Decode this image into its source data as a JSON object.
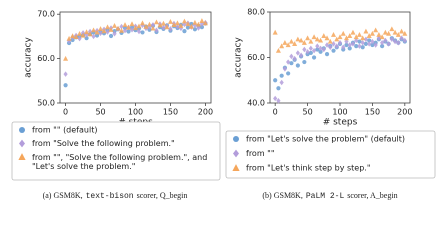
{
  "chart_data": [
    {
      "type": "scatter",
      "xlabel": "# steps",
      "ylabel": "accuracy",
      "xlim": [
        -8,
        208
      ],
      "ylim": [
        50,
        70.5
      ],
      "xticks": [
        0,
        50,
        100,
        150,
        200
      ],
      "yticks": [
        {
          "value": 50,
          "label": "50.0"
        },
        {
          "value": 60,
          "label": "60.0"
        },
        {
          "value": 70,
          "label": "70.0"
        }
      ],
      "x": [
        0,
        5,
        10,
        15,
        20,
        25,
        30,
        35,
        40,
        45,
        50,
        55,
        60,
        65,
        70,
        75,
        80,
        85,
        90,
        95,
        100,
        105,
        110,
        115,
        120,
        125,
        130,
        135,
        140,
        145,
        150,
        155,
        160,
        165,
        170,
        175,
        180,
        185,
        190,
        195,
        200
      ],
      "series": [
        {
          "name": "from \"\" (default)",
          "color": "#6a9fd4",
          "marker": "circle",
          "values": [
            54.0,
            63.5,
            64.2,
            64.8,
            65.0,
            65.3,
            64.6,
            65.5,
            65.9,
            65.2,
            66.0,
            65.7,
            66.4,
            65.1,
            66.2,
            66.6,
            65.8,
            66.9,
            66.1,
            67.0,
            66.4,
            66.8,
            65.9,
            67.2,
            66.5,
            67.4,
            66.0,
            67.1,
            66.7,
            67.5,
            66.3,
            67.3,
            66.9,
            67.6,
            66.2,
            67.0,
            67.8,
            66.6,
            67.4,
            67.1,
            67.9
          ]
        },
        {
          "name": "from \"Solve the following problem.\"",
          "color": "#b39ddb",
          "marker": "diamond",
          "values": [
            56.5,
            64.0,
            64.8,
            65.2,
            64.5,
            65.8,
            65.4,
            66.1,
            65.0,
            66.3,
            65.7,
            66.6,
            66.0,
            66.9,
            65.6,
            66.7,
            67.2,
            66.3,
            67.0,
            66.5,
            67.3,
            66.1,
            67.5,
            66.8,
            67.1,
            67.6,
            66.4,
            67.8,
            67.0,
            67.3,
            66.7,
            67.9,
            67.2,
            66.8,
            67.7,
            68.0,
            67.1,
            67.5,
            66.9,
            67.8,
            68.1
          ]
        },
        {
          "name": "from \"\", \"Solve the following problem.\", and \"Let's solve the problem.\"",
          "color": "#f5a65b",
          "marker": "triangle",
          "values": [
            60.0,
            64.5,
            65.1,
            64.9,
            65.6,
            65.2,
            66.0,
            65.5,
            66.4,
            65.9,
            66.7,
            66.2,
            67.1,
            66.5,
            67.4,
            66.8,
            66.3,
            67.6,
            67.0,
            67.8,
            66.9,
            67.3,
            68.0,
            67.2,
            67.7,
            66.8,
            68.2,
            67.5,
            67.9,
            67.1,
            68.3,
            67.6,
            68.0,
            67.4,
            68.4,
            67.8,
            67.2,
            68.1,
            67.7,
            68.5,
            68.0
          ]
        }
      ],
      "caption": [
        "(a) GSM8K,",
        "text-bison",
        "scorer, Q_begin"
      ]
    },
    {
      "type": "scatter",
      "xlabel": "# steps",
      "ylabel": "accuracy",
      "xlim": [
        -8,
        208
      ],
      "ylim": [
        40,
        80
      ],
      "xticks": [
        0,
        50,
        100,
        150,
        200
      ],
      "yticks": [
        {
          "value": 40,
          "label": "40.0"
        },
        {
          "value": 60,
          "label": "60.0"
        },
        {
          "value": 80,
          "label": "80.0"
        }
      ],
      "x": [
        0,
        5,
        10,
        15,
        20,
        25,
        30,
        35,
        40,
        45,
        50,
        55,
        60,
        65,
        70,
        75,
        80,
        85,
        90,
        95,
        100,
        105,
        110,
        115,
        120,
        125,
        130,
        135,
        140,
        145,
        150,
        155,
        160,
        165,
        170,
        175,
        180,
        185,
        190,
        195,
        200
      ],
      "series": [
        {
          "name": "from \"Let's solve the problem\" (default)",
          "color": "#6a9fd4",
          "marker": "circle",
          "values": [
            50.0,
            46.5,
            52.0,
            55.5,
            53.0,
            57.5,
            59.0,
            56.5,
            60.5,
            58.0,
            61.5,
            62.0,
            60.0,
            63.5,
            62.5,
            64.0,
            61.5,
            65.0,
            63.0,
            64.5,
            66.0,
            63.5,
            65.5,
            64.0,
            66.5,
            65.0,
            67.0,
            64.5,
            66.0,
            67.5,
            65.5,
            66.5,
            68.0,
            65.0,
            67.0,
            66.0,
            68.5,
            67.5,
            66.5,
            68.0,
            67.0
          ]
        },
        {
          "name": "from \"\"",
          "color": "#b39ddb",
          "marker": "diamond",
          "values": [
            42.0,
            41.0,
            49.0,
            55.0,
            58.0,
            60.5,
            59.5,
            62.0,
            61.0,
            63.5,
            62.5,
            64.0,
            63.0,
            65.0,
            64.0,
            63.5,
            65.5,
            64.5,
            66.0,
            65.0,
            66.5,
            64.5,
            67.0,
            65.5,
            66.0,
            67.5,
            65.0,
            66.5,
            68.0,
            66.0,
            67.0,
            65.5,
            68.5,
            66.5,
            67.5,
            66.0,
            68.0,
            67.0,
            66.5,
            68.5,
            67.5
          ]
        },
        {
          "name": "from \"Let's think step by step.\"",
          "color": "#f5a65b",
          "marker": "triangle",
          "values": [
            71.0,
            63.0,
            65.0,
            66.5,
            65.5,
            67.0,
            66.0,
            68.0,
            67.5,
            66.5,
            68.5,
            67.0,
            69.0,
            68.0,
            67.5,
            69.5,
            68.5,
            67.0,
            70.0,
            68.0,
            69.0,
            70.5,
            68.5,
            69.5,
            71.0,
            69.0,
            70.0,
            68.5,
            71.5,
            69.5,
            70.5,
            72.0,
            70.0,
            69.0,
            71.0,
            70.5,
            72.5,
            71.0,
            70.0,
            71.5,
            70.5
          ]
        }
      ],
      "caption": [
        "(b) GSM8K,",
        "PaLM 2-L",
        "scorer, A_begin"
      ]
    }
  ]
}
